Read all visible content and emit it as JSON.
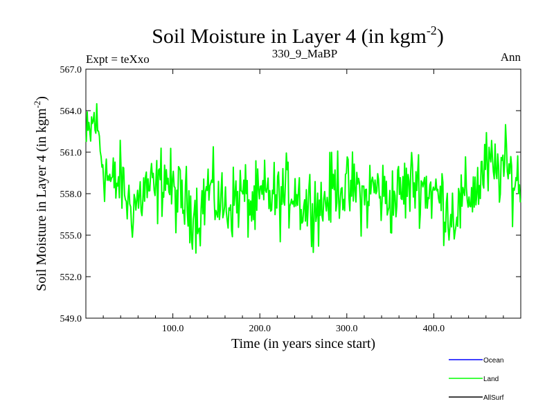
{
  "chart_data": {
    "type": "line",
    "title": "Soil Moisture in Layer 4 (in kgm",
    "title_sup": "-2",
    "title_close": ")",
    "subtitle_left": "Expt = teXxo",
    "subtitle_center": "330_9_MaBP",
    "subtitle_right": "Ann",
    "xlabel": "Time (in years since start)",
    "ylabel": "Soil Moisture in Layer 4 (in kgm",
    "ylabel_sup": "-2",
    "ylabel_close": ")",
    "xlim": [
      0,
      500
    ],
    "ylim": [
      549.0,
      567.0
    ],
    "xticks": [
      100,
      200,
      300,
      400
    ],
    "xtick_labels": [
      "100.0",
      "200.0",
      "300.0",
      "400.0"
    ],
    "yticks": [
      549,
      552,
      555,
      558,
      561,
      564,
      567
    ],
    "ytick_labels": [
      "549.0",
      "552.0",
      "555.0",
      "558.0",
      "561.0",
      "564.0",
      "567.0"
    ],
    "legend": {
      "placement": "bottom-right",
      "entries": [
        {
          "name": "Ocean",
          "color": "#0000ff"
        },
        {
          "name": "Land",
          "color": "#00ff00"
        },
        {
          "name": "AllSurf",
          "color": "#000000"
        }
      ]
    },
    "series": [
      {
        "name": "Land",
        "color": "#00ff00",
        "x_start": 0,
        "x_step": 10,
        "values": [
          561.5,
          563.5,
          560.0,
          558.5,
          559.0,
          557.0,
          557.5,
          558.5,
          558.0,
          559.5,
          558.0,
          557.5,
          557.0,
          556.5,
          558.5,
          557.5,
          557.0,
          557.5,
          558.0,
          557.0,
          557.5,
          558.0,
          557.5,
          558.0,
          558.5,
          557.0,
          557.5,
          557.0,
          558.0,
          559.0,
          558.0,
          558.5,
          557.5,
          558.5,
          558.0,
          557.5,
          558.0,
          558.5,
          559.0,
          558.5,
          558.0,
          557.5,
          556.5,
          557.0,
          558.0,
          558.5,
          560.0,
          559.5,
          560.0,
          559.0
        ]
      }
    ]
  }
}
